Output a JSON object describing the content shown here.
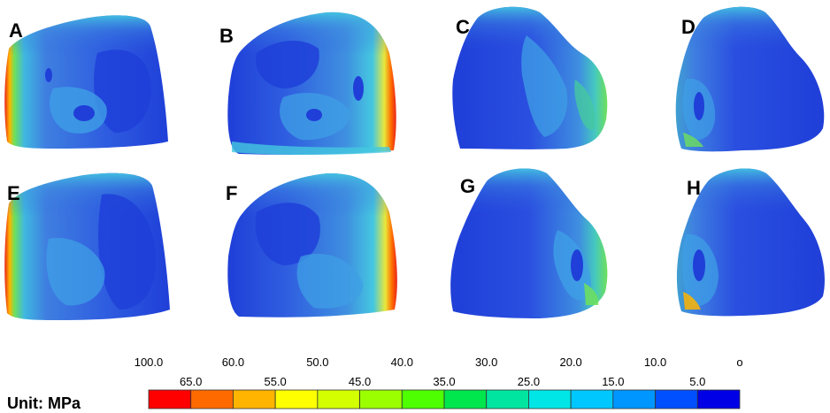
{
  "panels": [
    {
      "label": "A"
    },
    {
      "label": "B"
    },
    {
      "label": "C"
    },
    {
      "label": "D"
    },
    {
      "label": "E"
    },
    {
      "label": "F"
    },
    {
      "label": "G"
    },
    {
      "label": "H"
    }
  ],
  "colorbar": {
    "unit_label": "Unit: MPa",
    "upper_ticks": [
      "100.0",
      "60.0",
      "50.0",
      "40.0",
      "30.0",
      "20.0",
      "10.0",
      "o"
    ],
    "lower_ticks": [
      "65.0",
      "55.0",
      "45.0",
      "35.0",
      "25.0",
      "15.0",
      "5.0"
    ],
    "colors": [
      "#ff0000",
      "#ff6a00",
      "#ffb400",
      "#ffff00",
      "#d4ff00",
      "#9cff00",
      "#4dff00",
      "#00e64d",
      "#00e6a0",
      "#00e6e6",
      "#00c8ff",
      "#0096ff",
      "#0050ff",
      "#0000e6"
    ]
  },
  "palette": {
    "deep_blue": "#1a2ed6",
    "mid_blue": "#2f5ee0",
    "cyan_blue": "#3f9fe6",
    "cyan": "#45c8e0",
    "teal": "#3fd0b0",
    "green": "#6ee05a",
    "yellow": "#e8e83a",
    "orange": "#ff9a1a",
    "red": "#e8241a"
  }
}
